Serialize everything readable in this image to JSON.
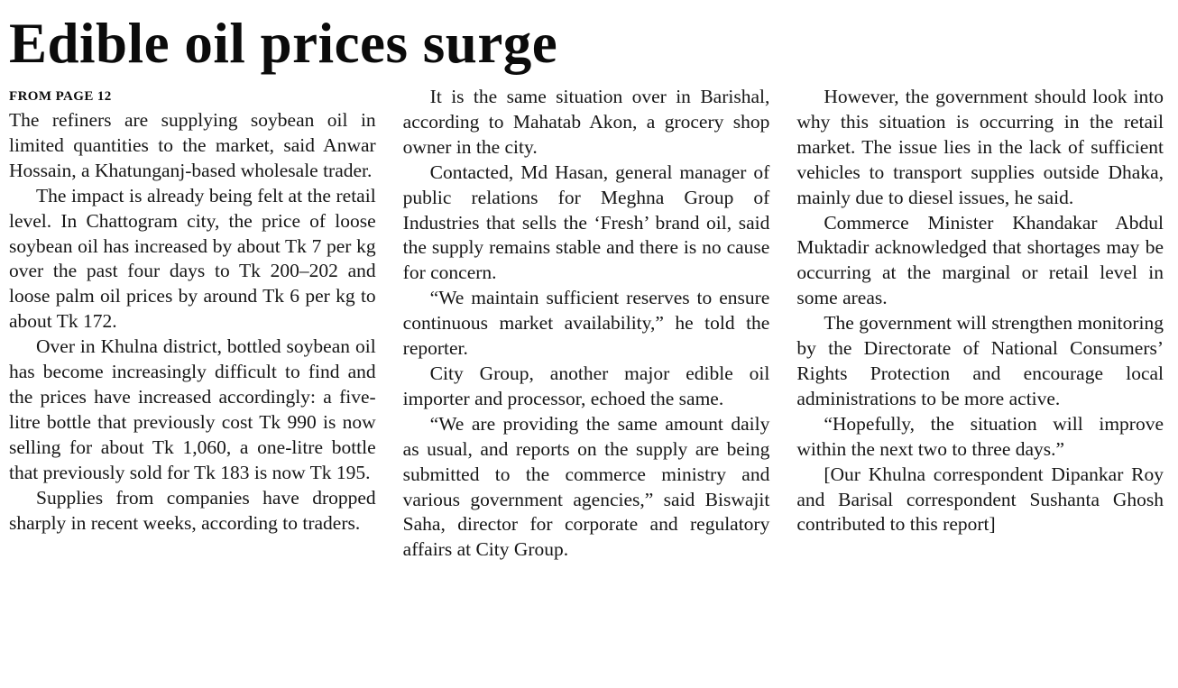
{
  "article": {
    "headline": "Edible oil prices surge",
    "kicker": "FROM PAGE 12",
    "columns": [
      {
        "paragraphs": [
          "The refiners are supplying soybean oil in limited quantities to the market, said Anwar Hossain, a Khatunganj-based wholesale trader.",
          "The impact is already being felt at the retail level. In Chattogram city, the price of loose soybean oil has increased by about Tk 7 per kg over the past four days to Tk 200–202 and loose palm oil prices by around Tk 6 per kg to about Tk 172.",
          "Over in Khulna district, bottled soybean oil has become increasingly difficult to find and the prices have increased accordingly: a five-litre bottle that previously cost Tk 990 is now selling for about Tk 1,060, a one-litre bottle that previously sold for Tk 183 is now Tk 195.",
          "Supplies from companies have dropped sharply in recent weeks, according to traders."
        ]
      },
      {
        "paragraphs": [
          "It is the same situation over in Barishal, according to Mahatab Akon, a grocery shop owner in the city.",
          "Contacted, Md Hasan, general manager of public relations for Meghna Group of Industries that sells the ‘Fresh’ brand oil, said the supply remains stable and there is no cause for concern.",
          "“We maintain sufficient reserves to ensure continuous market availability,” he told the reporter.",
          "City Group, another major edible oil importer and processor, echoed the same.",
          "“We are providing the same amount daily as usual, and reports on the supply are being submitted to the commerce ministry and various government agencies,” said Biswajit Saha, director for corporate and regulatory affairs at City Group."
        ]
      },
      {
        "paragraphs": [
          "However, the government should look into why this situation is occurring in the retail market. The issue lies in the lack of sufficient vehicles to transport supplies outside Dhaka, mainly due to diesel issues, he said.",
          "Commerce Minister Khandakar Abdul Muktadir acknowledged that shortages may be occurring at the marginal or retail level in some areas.",
          "The government will strengthen monitoring by the Directorate of National Consumers’ Rights Protection and encourage local administrations to be more active.",
          "“Hopefully, the situation will improve within the next two to three days.”",
          "[Our Khulna correspondent Dipankar Roy and Barisal correspondent Sushanta Ghosh contributed to this report]"
        ]
      }
    ]
  }
}
